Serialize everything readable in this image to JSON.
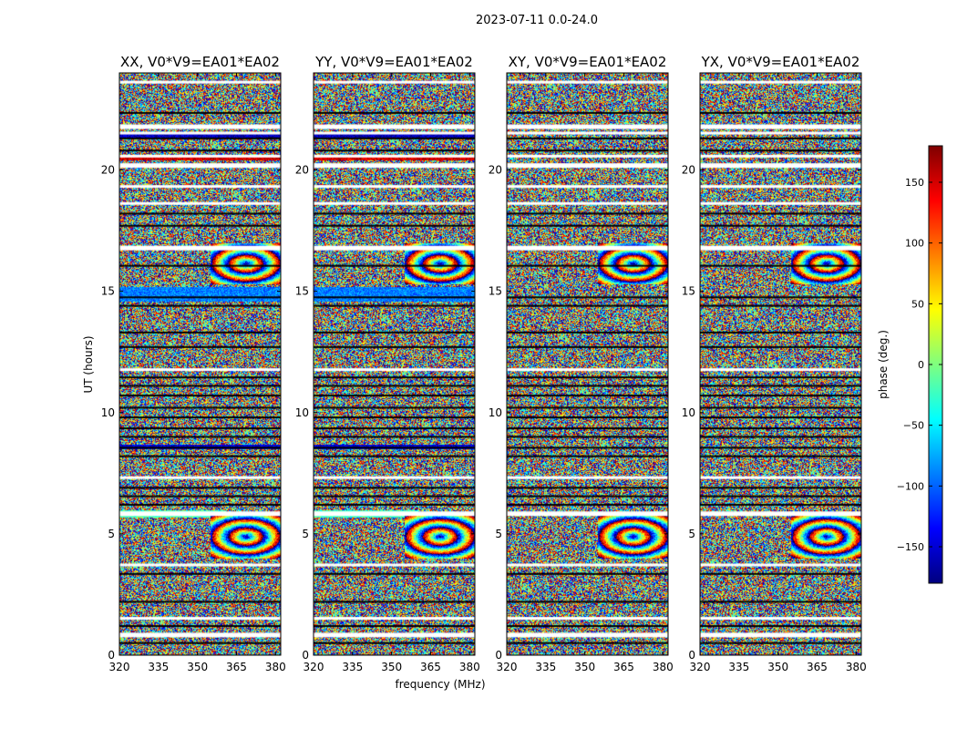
{
  "figure": {
    "suptitle": "2023-07-11 0.0-24.0",
    "xlabel": "frequency (MHz)",
    "ylabel": "UT (hours)"
  },
  "colorbar": {
    "label": "phase (deg.)",
    "range": [
      -180,
      180
    ],
    "ticks": [
      150,
      100,
      50,
      0,
      -50,
      -100,
      -150
    ],
    "tick_labels": [
      "150",
      "100",
      "50",
      "0",
      "−50",
      "−100",
      "−150"
    ],
    "colormap": [
      "#00007f",
      "#0000ff",
      "#007fff",
      "#00ffff",
      "#7fff7f",
      "#ffff00",
      "#ff7f00",
      "#ff0000",
      "#7f0000"
    ]
  },
  "chart_data": {
    "type": "heatmap",
    "description_units": {
      "x": "MHz",
      "y": "hours",
      "z": "degrees"
    },
    "xlim": [
      320,
      382
    ],
    "ylim": [
      0,
      24
    ],
    "x_ticks": [
      320,
      335,
      350,
      365,
      380
    ],
    "x_tick_labels": [
      "320",
      "335",
      "350",
      "365",
      "380"
    ],
    "y_ticks": [
      0,
      5,
      10,
      15,
      20
    ],
    "y_tick_labels": [
      "0",
      "5",
      "10",
      "15",
      "20"
    ],
    "panels": [
      {
        "title": "XX, V0*V9=EA01*EA02",
        "pol": "XX"
      },
      {
        "title": "YY, V0*V9=EA01*EA02",
        "pol": "YY"
      },
      {
        "title": "XY, V0*V9=EA01*EA02",
        "pol": "XY"
      },
      {
        "title": "YX, V0*V9=EA01*EA02",
        "pol": "YX"
      }
    ],
    "flagged_white_bands_hours": [
      0.85,
      1.5,
      3.7,
      5.85,
      7.3,
      11.75,
      16.8,
      18.6,
      19.3,
      20.2,
      20.55,
      21.5,
      21.8,
      23.6
    ],
    "dark_stripes_hours": [
      0.5,
      1.2,
      2.2,
      3.35,
      6.2,
      6.55,
      6.9,
      8.2,
      8.55,
      9.0,
      9.35,
      9.8,
      10.2,
      10.7,
      11.1,
      11.45,
      12.7,
      13.3,
      14.4,
      14.75,
      16.05,
      17.7,
      18.2,
      20.8,
      21.3,
      22.35
    ],
    "coherent_phase_features": [
      {
        "panels": [
          "XX",
          "YY"
        ],
        "ut_range": [
          14.6,
          15.2
        ],
        "freq_range": [
          320,
          382
        ],
        "phase_deg": -90
      },
      {
        "panels": [
          "XX",
          "YY"
        ],
        "ut_range": [
          5.7,
          6.0
        ],
        "freq_range": [
          320,
          360
        ],
        "phase_deg": -20
      },
      {
        "panels": [
          "XX",
          "YY"
        ],
        "ut_range": [
          20.4,
          20.6
        ],
        "freq_range": [
          320,
          382
        ],
        "phase_deg": 150
      },
      {
        "panels": [
          "XX",
          "YY"
        ],
        "ut_range": [
          8.5,
          8.7
        ],
        "freq_range": [
          320,
          382
        ],
        "phase_deg": -150
      },
      {
        "panels": [
          "XX",
          "YY"
        ],
        "ut_range": [
          21.3,
          21.5
        ],
        "freq_range": [
          320,
          382
        ],
        "phase_deg": -160
      },
      {
        "panels": [
          "XX",
          "YY",
          "XY",
          "YX"
        ],
        "ut_range": [
          15.3,
          17.0
        ],
        "freq_range": [
          355,
          382
        ],
        "pattern": "fringe rings"
      },
      {
        "panels": [
          "XX",
          "YY",
          "XY",
          "YX"
        ],
        "ut_range": [
          4.0,
          5.8
        ],
        "freq_range": [
          355,
          382
        ],
        "pattern": "fringe rings"
      }
    ]
  }
}
